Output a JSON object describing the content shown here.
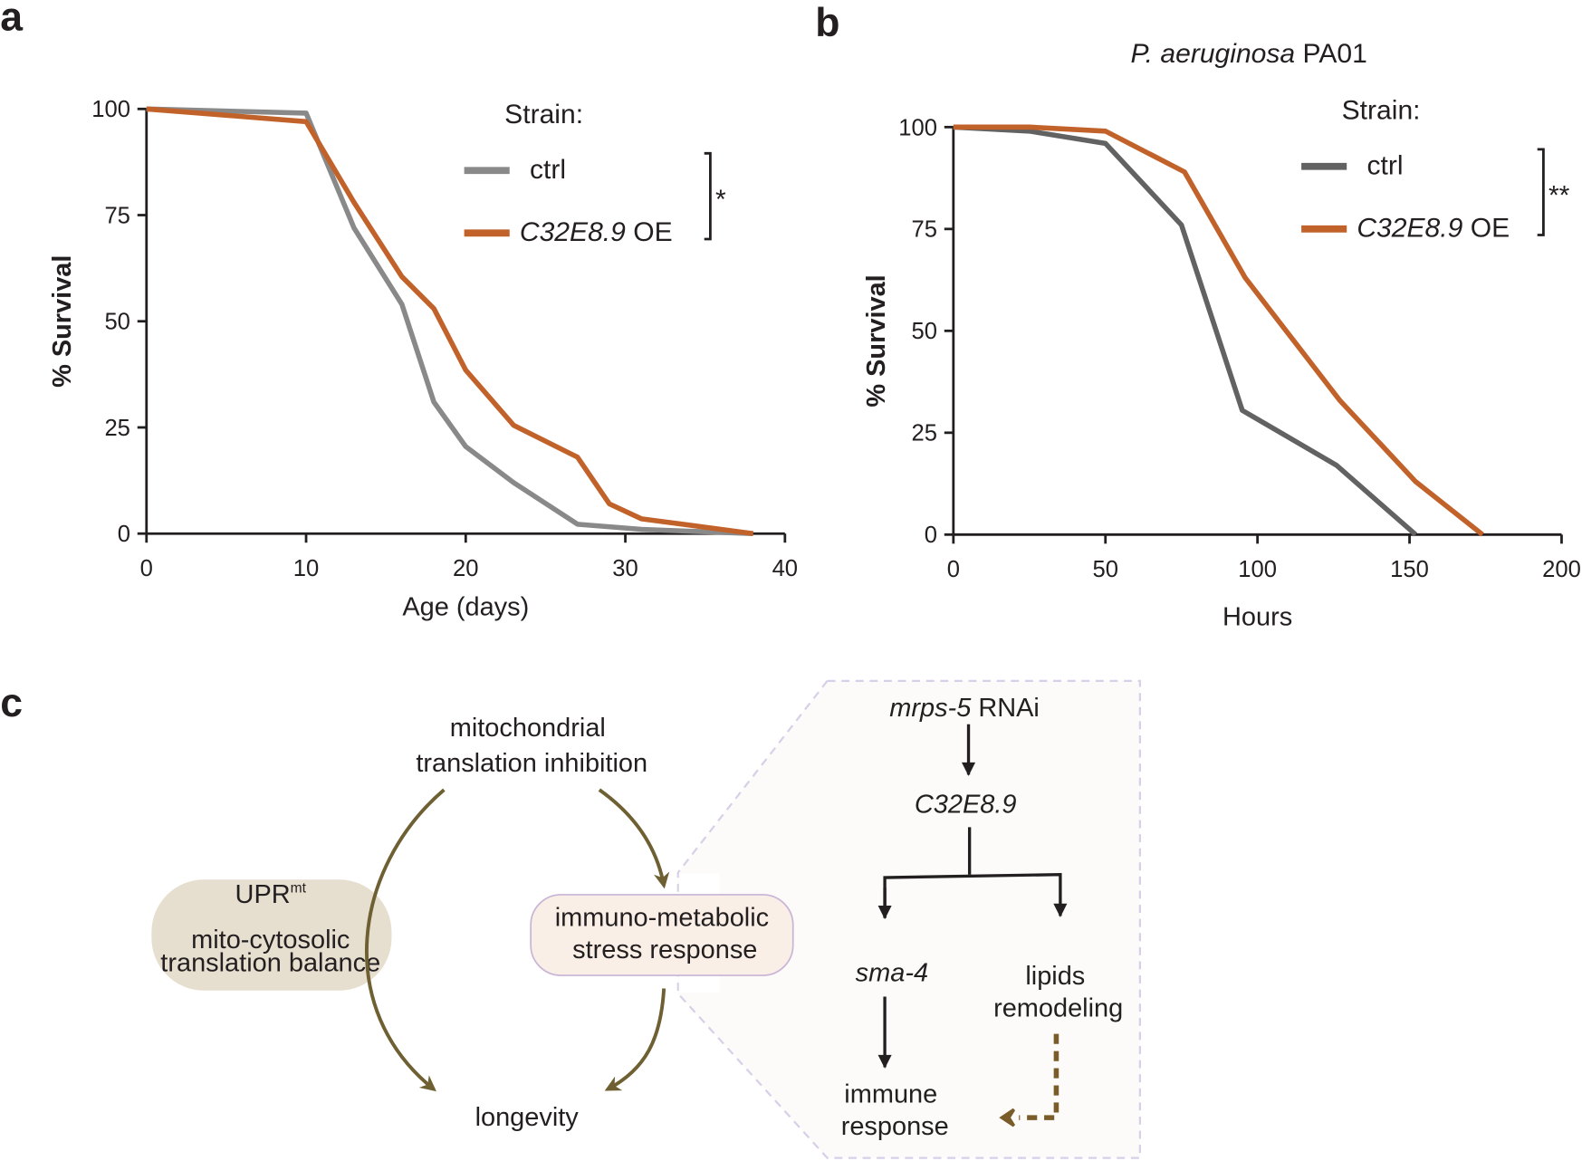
{
  "panels": {
    "a": "a",
    "b": "b",
    "c": "c"
  },
  "chart_data": [
    {
      "type": "line",
      "title": "",
      "xlabel": "Age (days)",
      "ylabel": "% Survival",
      "xlim": [
        0,
        40
      ],
      "ylim": [
        0,
        100
      ],
      "xticks": [
        "0",
        "10",
        "20",
        "30",
        "40"
      ],
      "yticks": [
        "0",
        "25",
        "50",
        "75",
        "100"
      ],
      "legend_title": "Strain:",
      "legend_placement": "top-right",
      "significance": "*",
      "series": [
        {
          "name": "ctrl",
          "color": "#898989",
          "x": [
            0,
            10,
            13,
            16,
            18,
            20,
            23,
            27,
            31,
            38
          ],
          "y": [
            100,
            99,
            72,
            54,
            31,
            20.5,
            12,
            2.2,
            1,
            0
          ]
        },
        {
          "name_italic": "C32E8.9",
          "name_suffix": " OE",
          "color": "#c2622b",
          "x": [
            0,
            10,
            13,
            16,
            18,
            20,
            23,
            27,
            29,
            31,
            38
          ],
          "y": [
            100,
            97,
            78,
            60.5,
            53,
            38.5,
            25.5,
            18,
            7,
            3.5,
            0
          ]
        }
      ]
    },
    {
      "type": "line",
      "title_italic": "P. aeruginosa",
      "title_suffix": " PA01",
      "xlabel": "Hours",
      "ylabel": "% Survival",
      "xlim": [
        0,
        200
      ],
      "ylim": [
        0,
        100
      ],
      "xticks": [
        "0",
        "50",
        "100",
        "150",
        "200"
      ],
      "yticks": [
        "0",
        "25",
        "50",
        "75",
        "100"
      ],
      "legend_title": "Strain:",
      "legend_placement": "top-right",
      "significance": "**",
      "series": [
        {
          "name": "ctrl",
          "color": "#626262",
          "x": [
            0,
            25,
            50,
            75,
            95,
            126,
            152
          ],
          "y": [
            100,
            99,
            96,
            76,
            30.5,
            17,
            0
          ]
        },
        {
          "name_italic": "C32E8.9",
          "name_suffix": " OE",
          "color": "#c2622b",
          "x": [
            0,
            25,
            50,
            76,
            96,
            127,
            152,
            174
          ],
          "y": [
            100,
            100,
            99,
            89,
            63,
            33,
            13,
            0
          ]
        }
      ]
    }
  ],
  "diagram": {
    "top_line1": "mitochondrial",
    "top_line2": "translation inhibition",
    "upr": "UPR",
    "upr_sup": "mt",
    "upr_line1": "mito-cytosolic",
    "upr_line2": "translation balance",
    "stress_line1": "immuno-metabolic",
    "stress_line2": "stress response",
    "longevity": "longevity",
    "inset": {
      "rnai_italic": "mrps-5",
      "rnai_suffix": " RNAi",
      "gene": "C32E8.9",
      "sma": "sma-4",
      "lipids_line1": "lipids",
      "lipids_line2": "remodeling",
      "immune_line1": "immune",
      "immune_line2": "response"
    },
    "colors": {
      "arrow": "#6e6032",
      "dashed_arrow": "#7a5c2a",
      "upr_fill": "#e6dfd0",
      "stress_fill": "#f9efe6",
      "stress_stroke": "#c7b4d6",
      "inset_fill": "#fcfbfa",
      "inset_stroke": "#d8cfe8"
    }
  }
}
